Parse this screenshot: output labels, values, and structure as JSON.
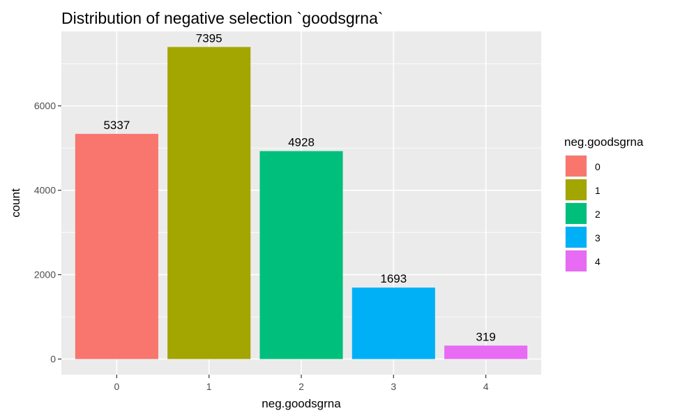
{
  "chart_data": {
    "type": "bar",
    "title": "Distribution of negative selection `goodsgrna`",
    "xlabel": "neg.goodsgrna",
    "ylabel": "count",
    "categories": [
      "0",
      "1",
      "2",
      "3",
      "4"
    ],
    "values": [
      5337,
      7395,
      4928,
      1693,
      319
    ],
    "data_labels": [
      "5337",
      "7395",
      "4928",
      "1693",
      "319"
    ],
    "colors": [
      "#F8766D",
      "#A3A500",
      "#00BF7D",
      "#00B0F6",
      "#E76BF3"
    ],
    "yticks": [
      0,
      2000,
      4000,
      6000
    ],
    "ytick_labels": [
      "0",
      "2000",
      "4000",
      "6000"
    ],
    "ylim": [
      -369.8,
      7764.8
    ],
    "grid": true,
    "panel_background": "#EBEBEB",
    "legend": {
      "title": "neg.goodsgrna",
      "labels": [
        "0",
        "1",
        "2",
        "3",
        "4"
      ],
      "placement": "right"
    }
  }
}
